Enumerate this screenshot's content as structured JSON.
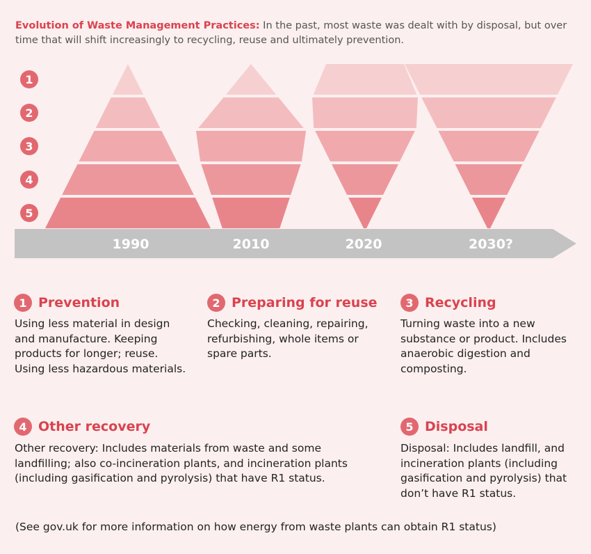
{
  "intro": {
    "lead": "Evolution of Waste Management Practices:",
    "text": " In the past, most waste was dealt with by disposal, but over time that will shift increasingly to recycling, reuse and ultimately prevention."
  },
  "levels": [
    "1",
    "2",
    "3",
    "4",
    "5"
  ],
  "timeline": {
    "years": [
      "1990",
      "2010",
      "2020",
      "2030?"
    ],
    "shapes": [
      {
        "year": "1990",
        "widths": [
          0.0,
          0.3,
          0.56,
          0.8,
          1.0
        ]
      },
      {
        "year": "2010",
        "widths": [
          0.2,
          0.63,
          1.0,
          1.0,
          0.48
        ]
      },
      {
        "year": "2020",
        "widths": [
          0.47,
          1.0,
          0.78,
          0.54,
          0.0
        ]
      },
      {
        "year": "2030?",
        "widths": [
          1.0,
          0.8,
          0.59,
          0.39,
          0.0
        ]
      }
    ]
  },
  "colors": {
    "level_fills": [
      "#f6cfd1",
      "#f3bdc0",
      "#f0aaae",
      "#ec979c",
      "#e8858b"
    ],
    "accent": "#d9434f",
    "badge": "#e26870",
    "arrow": "#c3c3c3"
  },
  "sections": [
    {
      "num": "1",
      "title": "Prevention",
      "body": "Using less material in design and manufacture. Keeping products for longer; reuse. Using less hazardous materials."
    },
    {
      "num": "2",
      "title": "Preparing for reuse",
      "body": "Checking, cleaning, repairing, refurbishing, whole items or spare parts."
    },
    {
      "num": "3",
      "title": "Recycling",
      "body": "Turning waste into a new substance or product. Includes anaerobic digestion and composting."
    },
    {
      "num": "4",
      "title": "Other recovery",
      "body": "Other recovery: Includes materials from waste and some landfilling; also co-incineration plants, and incineration plants (including gasification and pyrolysis) that have R1 status."
    },
    {
      "num": "5",
      "title": "Disposal",
      "body": "Disposal: Includes landfill, and incineration plants (including gasification and pyrolysis) that don’t have R1 status."
    }
  ],
  "footnote": "(See gov.uk for more information on how energy from waste plants can obtain R1 status)"
}
